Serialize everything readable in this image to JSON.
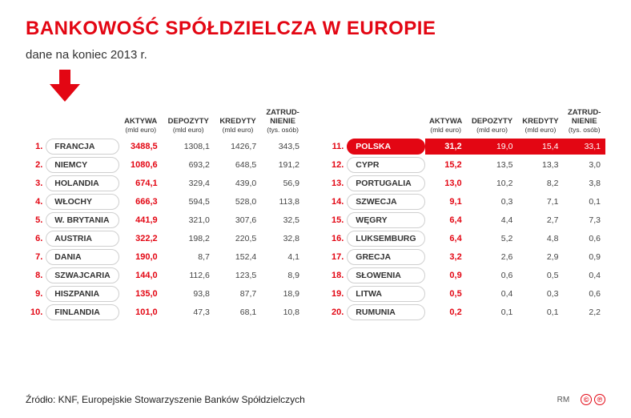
{
  "colors": {
    "accent": "#e30613",
    "text": "#333333",
    "row_border": "#cfcfcf",
    "background": "#ffffff"
  },
  "title": "BANKOWOŚĆ SPÓŁDZIELCZA W EUROPIE",
  "subtitle": "dane na koniec 2013 r.",
  "headers": {
    "aktywa": "AKTYWA",
    "aktywa_unit": "(mld euro)",
    "depozyty": "DEPOZYTY",
    "depozyty_unit": "(mld euro)",
    "kredyty": "KREDYTY",
    "kredyty_unit": "(mld euro)",
    "zatrudnienie_l1": "ZATRUD-",
    "zatrudnienie_l2": "NIENIE",
    "zatrudnienie_unit": "(tys. osób)"
  },
  "left": [
    {
      "rank": "1.",
      "country": "FRANCJA",
      "assets": "3488,5",
      "deposits": "1308,1",
      "credits": "1426,7",
      "employment": "343,5"
    },
    {
      "rank": "2.",
      "country": "NIEMCY",
      "assets": "1080,6",
      "deposits": "693,2",
      "credits": "648,5",
      "employment": "191,2"
    },
    {
      "rank": "3.",
      "country": "HOLANDIA",
      "assets": "674,1",
      "deposits": "329,4",
      "credits": "439,0",
      "employment": "56,9"
    },
    {
      "rank": "4.",
      "country": "WŁOCHY",
      "assets": "666,3",
      "deposits": "594,5",
      "credits": "528,0",
      "employment": "113,8"
    },
    {
      "rank": "5.",
      "country": "W. BRYTANIA",
      "assets": "441,9",
      "deposits": "321,0",
      "credits": "307,6",
      "employment": "32,5"
    },
    {
      "rank": "6.",
      "country": "AUSTRIA",
      "assets": "322,2",
      "deposits": "198,2",
      "credits": "220,5",
      "employment": "32,8"
    },
    {
      "rank": "7.",
      "country": "DANIA",
      "assets": "190,0",
      "deposits": "8,7",
      "credits": "152,4",
      "employment": "4,1"
    },
    {
      "rank": "8.",
      "country": "SZWAJCARIA",
      "assets": "144,0",
      "deposits": "112,6",
      "credits": "123,5",
      "employment": "8,9"
    },
    {
      "rank": "9.",
      "country": "HISZPANIA",
      "assets": "135,0",
      "deposits": "93,8",
      "credits": "87,7",
      "employment": "18,9"
    },
    {
      "rank": "10.",
      "country": "FINLANDIA",
      "assets": "101,0",
      "deposits": "47,3",
      "credits": "68,1",
      "employment": "10,8"
    }
  ],
  "right": [
    {
      "rank": "11.",
      "country": "POLSKA",
      "assets": "31,2",
      "deposits": "19,0",
      "credits": "15,4",
      "employment": "33,1",
      "highlight": true
    },
    {
      "rank": "12.",
      "country": "CYPR",
      "assets": "15,2",
      "deposits": "13,5",
      "credits": "13,3",
      "employment": "3,0"
    },
    {
      "rank": "13.",
      "country": "PORTUGALIA",
      "assets": "13,0",
      "deposits": "10,2",
      "credits": "8,2",
      "employment": "3,8"
    },
    {
      "rank": "14.",
      "country": "SZWECJA",
      "assets": "9,1",
      "deposits": "0,3",
      "credits": "7,1",
      "employment": "0,1"
    },
    {
      "rank": "15.",
      "country": "WĘGRY",
      "assets": "6,4",
      "deposits": "4,4",
      "credits": "2,7",
      "employment": "7,3"
    },
    {
      "rank": "16.",
      "country": "LUKSEMBURG",
      "assets": "6,4",
      "deposits": "5,2",
      "credits": "4,8",
      "employment": "0,6"
    },
    {
      "rank": "17.",
      "country": "GRECJA",
      "assets": "3,2",
      "deposits": "2,6",
      "credits": "2,9",
      "employment": "0,9"
    },
    {
      "rank": "18.",
      "country": "SŁOWENIA",
      "assets": "0,9",
      "deposits": "0,6",
      "credits": "0,5",
      "employment": "0,4"
    },
    {
      "rank": "19.",
      "country": "LITWA",
      "assets": "0,5",
      "deposits": "0,4",
      "credits": "0,3",
      "employment": "0,6"
    },
    {
      "rank": "20.",
      "country": "RUMUNIA",
      "assets": "0,2",
      "deposits": "0,1",
      "credits": "0,1",
      "employment": "2,2"
    }
  ],
  "source": "Źródło: KNF, Europejskie Stowarzyszenie Banków Spółdzielczych",
  "footer_rm": "RM",
  "footer_badges": [
    "©",
    "℗"
  ]
}
